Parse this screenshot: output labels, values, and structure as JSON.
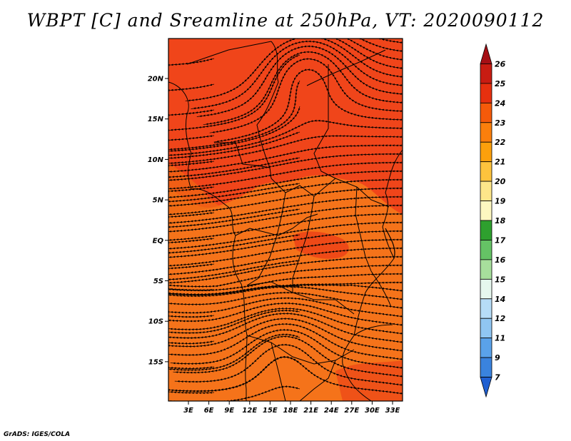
{
  "title": "WBPT [C] and Sreamline at 250hPa, VT: 2020090112",
  "lat_labels": [
    "20N",
    "15N",
    "10N",
    "5N",
    "EQ",
    "5S",
    "10S",
    "15S"
  ],
  "lon_labels": [
    "3E",
    "6E",
    "9E",
    "12E",
    "15E",
    "18E",
    "21E",
    "24E",
    "27E",
    "30E",
    "33E"
  ],
  "colorbar": {
    "labels": [
      "26",
      "25",
      "24",
      "23",
      "22",
      "21",
      "20",
      "19",
      "18",
      "17",
      "16",
      "15",
      "14",
      "12",
      "11",
      "9",
      "7"
    ],
    "colors": [
      "#a50f15",
      "#c81c12",
      "#e6300f",
      "#f55a0a",
      "#fb7f0c",
      "#fca00c",
      "#fdc33d",
      "#fde68a",
      "#fdf7c0",
      "#2ea02e",
      "#65c365",
      "#a7df9c",
      "#e6f7ee",
      "#b6dcf7",
      "#90c6f2",
      "#5aa2ea",
      "#3a83de",
      "#1f5fd1"
    ]
  },
  "map": {
    "north_fill": "#f0451a",
    "south_fill": "#f5731a",
    "frame_color": "#000000"
  },
  "credit": "GrADS: IGES/COLA"
}
